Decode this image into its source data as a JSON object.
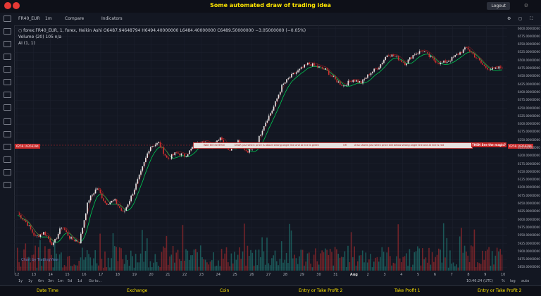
{
  "header": {
    "title": "Some automated draw of trading idea",
    "logged_label": "Logout"
  },
  "toolbar": {
    "symbol": "FR40_EUR",
    "interval": "1m",
    "compare": "Compare",
    "indicators": "Indicators"
  },
  "legend": {
    "line1": "○ forex:FR40_EUR, 1, forex, Heikin Ashi",
    "ohlc": "O6487.94648794  H6494.40000000  L6484.40000000  C6489.50000000  −3.05000000 (−0.05%)",
    "volume": "Volume (20)  105   n/a",
    "ai": "AI (1, 1)"
  },
  "price_tag": "6259.19356294",
  "banner": {
    "part1": "Wait till the 6900",
    "part2": "DEAR just when: price is above strong angle line and AI line is green",
    "part3": "OR",
    "part4": "Arso shorts just when price still below strong angle line and AI line is red",
    "cta": "THEN See the magic?"
  },
  "y_ticks": [
    "6600.00000000",
    "6575.00000000",
    "6550.00000000",
    "6525.00000000",
    "6500.00000000",
    "6475.00000000",
    "6450.00000000",
    "6425.00000000",
    "6400.00000000",
    "6375.00000000",
    "6350.00000000",
    "6325.00000000",
    "6300.00000000",
    "6275.00000000",
    "6250.00000000",
    "6225.00000000",
    "6200.00000000",
    "6175.00000000",
    "6150.00000000",
    "6125.00000000",
    "6100.00000000",
    "6075.00000000",
    "6050.00000000",
    "6025.00000000",
    "6000.00000000",
    "5975.00000000",
    "5950.00000000",
    "5925.00000000",
    "5900.00000000",
    "5875.00000000",
    "5850.00000000"
  ],
  "x_ticks": [
    "12",
    "13",
    "14",
    "15",
    "16",
    "17",
    "18",
    "19",
    "20",
    "21",
    "22",
    "23",
    "24",
    "25",
    "26",
    "27",
    "28",
    "29",
    "30",
    "31",
    "Aug",
    "2",
    "3",
    "4",
    "5",
    "6",
    "7",
    "8",
    "9",
    "10"
  ],
  "bottom": {
    "ranges": [
      "1y",
      "1y",
      "6m",
      "3m",
      "1m",
      "5d",
      "1d",
      "Go to..."
    ],
    "time": "10:46:24 (UTC)",
    "pct": "%",
    "log": "log",
    "auto": "auto"
  },
  "tv_mark": "Chart by TradingView",
  "footer": [
    "Date Time",
    "Exchange",
    "Coin",
    "Entry or Take Profit 2",
    "Take Profit 1",
    "Entry or Take Profit 2"
  ],
  "colors": {
    "up": "#e6e6e6",
    "down": "#d32f2f",
    "ma": "#00c853",
    "bg": "#131722",
    "accent": "#ffe500"
  },
  "chart_data": {
    "type": "line",
    "ylim": [
      5840,
      6610
    ],
    "y_ticks": [
      6600,
      6575,
      6550,
      6525,
      6500,
      6475,
      6450,
      6425,
      6400,
      6375,
      6350,
      6325,
      6300,
      6275,
      6250,
      6225,
      6200,
      6175,
      6150,
      6125,
      6100,
      6075,
      6050,
      6025,
      6000,
      5975,
      5950,
      5925,
      5900,
      5875,
      5850
    ],
    "price_anchors": [
      6020,
      5990,
      5945,
      5960,
      5920,
      5980,
      5940,
      5930,
      6060,
      6100,
      6050,
      6060,
      6020,
      6080,
      6150,
      6230,
      6240,
      6190,
      6210,
      6200,
      6230,
      6250,
      6230,
      6260,
      6220,
      6250,
      6210,
      6230,
      6300,
      6350,
      6420,
      6450,
      6470,
      6490,
      6480,
      6470,
      6440,
      6420,
      6440,
      6430,
      6460,
      6480,
      6520,
      6510,
      6490,
      6520,
      6530,
      6505,
      6490,
      6500,
      6520,
      6540,
      6510,
      6480,
      6470,
      6480
    ],
    "volume_note": "volume bars at bottom, red and green"
  }
}
